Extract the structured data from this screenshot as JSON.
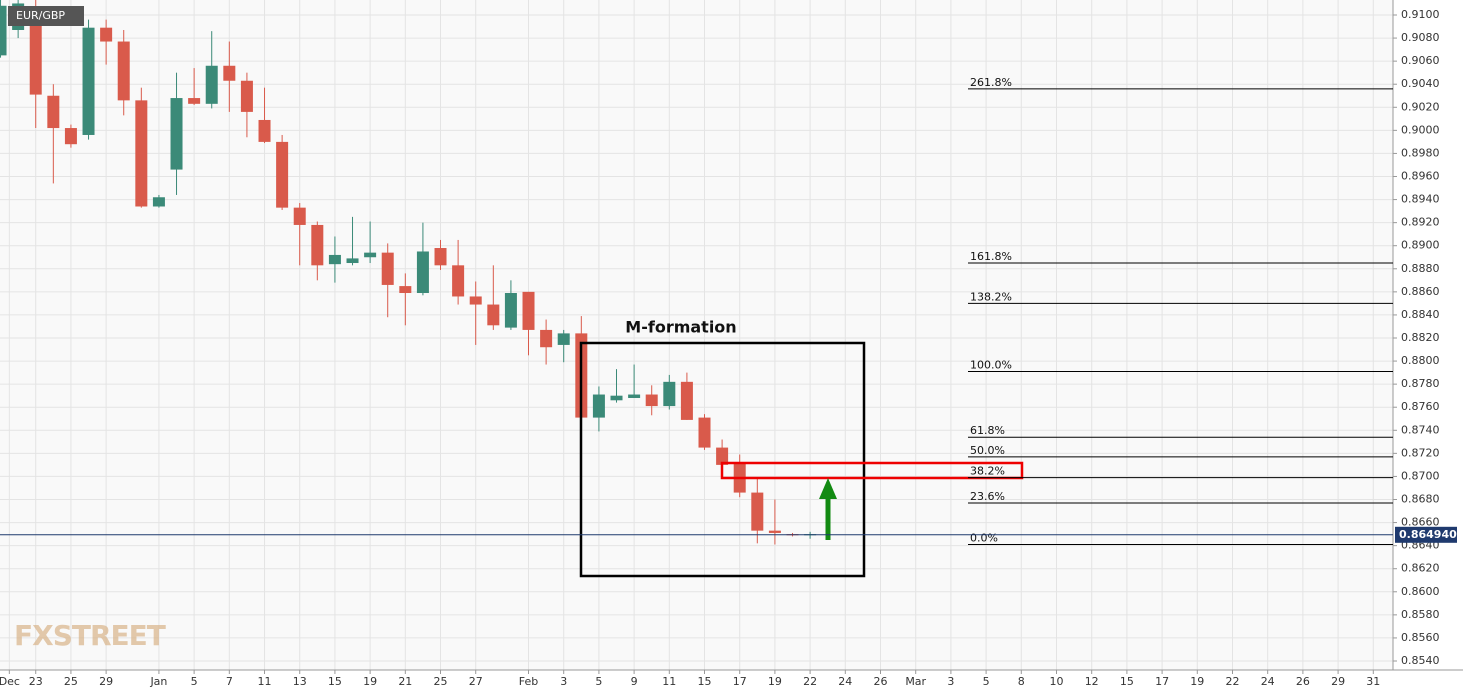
{
  "chart_data": {
    "type": "candlestick",
    "symbol": "EUR/GBP",
    "watermark": "FXSTREET",
    "annotation": "M-formation",
    "up_color": "#3b8a78",
    "down_color": "#d95a4b",
    "grid": true,
    "x": [
      0,
      1,
      2,
      3,
      4,
      5,
      6,
      7,
      8,
      9,
      10,
      11,
      12,
      13,
      14,
      15,
      16,
      17,
      18,
      19,
      20,
      21,
      22,
      23,
      24,
      25,
      26,
      27,
      28,
      29,
      30,
      31,
      32,
      33,
      34,
      35,
      36,
      37,
      38,
      39,
      40,
      41,
      42,
      43,
      44,
      45,
      46
    ],
    "open": [
      0.9065,
      0.9087,
      0.9098,
      0.903,
      0.9002,
      0.8996,
      0.9089,
      0.9077,
      0.9026,
      0.8934,
      0.8966,
      0.9028,
      0.9023,
      0.9056,
      0.9043,
      0.9009,
      0.899,
      0.8933,
      0.8918,
      0.8884,
      0.8885,
      0.889,
      0.8894,
      0.8865,
      0.8859,
      0.8898,
      0.8883,
      0.8856,
      0.8849,
      0.8829,
      0.886,
      0.8827,
      0.8814,
      0.8824,
      0.8751,
      0.8766,
      0.8768,
      0.8771,
      0.8761,
      0.8782,
      0.8751,
      0.8725,
      0.8711,
      0.8686,
      0.8653,
      0.865,
      0.8649
    ],
    "high": [
      0.9113,
      0.9113,
      0.9113,
      0.904,
      0.9005,
      0.9096,
      0.9096,
      0.9087,
      0.9037,
      0.8944,
      0.905,
      0.9054,
      0.9086,
      0.9077,
      0.905,
      0.9037,
      0.8996,
      0.8937,
      0.8921,
      0.8908,
      0.8925,
      0.8921,
      0.8902,
      0.8876,
      0.892,
      0.8905,
      0.8905,
      0.8869,
      0.8883,
      0.887,
      0.886,
      0.8836,
      0.8827,
      0.8839,
      0.8778,
      0.8793,
      0.8797,
      0.8779,
      0.8788,
      0.879,
      0.8754,
      0.8732,
      0.8719,
      0.8699,
      0.868,
      0.8651,
      0.8652
    ],
    "low": [
      0.9063,
      0.908,
      0.9002,
      0.8954,
      0.8985,
      0.8992,
      0.9057,
      0.9013,
      0.8933,
      0.8933,
      0.8944,
      0.9022,
      0.9019,
      0.9016,
      0.8994,
      0.8989,
      0.8931,
      0.8883,
      0.887,
      0.8868,
      0.8883,
      0.8885,
      0.8838,
      0.8831,
      0.8857,
      0.8879,
      0.8849,
      0.8814,
      0.8827,
      0.8827,
      0.8805,
      0.8797,
      0.8799,
      0.8751,
      0.8739,
      0.8764,
      0.8768,
      0.8753,
      0.8758,
      0.8749,
      0.8723,
      0.8701,
      0.8682,
      0.8642,
      0.8641,
      0.8648,
      0.8646
    ],
    "close": [
      0.9108,
      0.911,
      0.9031,
      0.9002,
      0.8988,
      0.9089,
      0.9077,
      0.9026,
      0.8934,
      0.8942,
      0.9028,
      0.9023,
      0.9056,
      0.9043,
      0.9016,
      0.899,
      0.8933,
      0.8918,
      0.8883,
      0.8892,
      0.8889,
      0.8894,
      0.8866,
      0.8859,
      0.8895,
      0.8883,
      0.8856,
      0.8849,
      0.8831,
      0.8859,
      0.8827,
      0.8812,
      0.8824,
      0.8751,
      0.8771,
      0.877,
      0.8771,
      0.8761,
      0.8782,
      0.8749,
      0.8725,
      0.871,
      0.8686,
      0.8653,
      0.8651,
      0.8649,
      0.865
    ],
    "xlim": [
      -0.03,
      79.12
    ],
    "ylim": [
      0.85322,
      0.9113
    ],
    "xticks": [
      {
        "value": 0.5,
        "label": "Dec"
      },
      {
        "value": 2,
        "label": "23"
      },
      {
        "value": 4,
        "label": "25"
      },
      {
        "value": 6,
        "label": "29"
      },
      {
        "value": 9,
        "label": "Jan"
      },
      {
        "value": 11,
        "label": "5"
      },
      {
        "value": 13,
        "label": "7"
      },
      {
        "value": 15,
        "label": "11"
      },
      {
        "value": 17,
        "label": "13"
      },
      {
        "value": 19,
        "label": "15"
      },
      {
        "value": 21,
        "label": "19"
      },
      {
        "value": 23,
        "label": "21"
      },
      {
        "value": 25,
        "label": "25"
      },
      {
        "value": 27,
        "label": "27"
      },
      {
        "value": 30,
        "label": "Feb"
      },
      {
        "value": 32,
        "label": "3"
      },
      {
        "value": 34,
        "label": "5"
      },
      {
        "value": 36,
        "label": "9"
      },
      {
        "value": 38,
        "label": "11"
      },
      {
        "value": 40,
        "label": "15"
      },
      {
        "value": 42,
        "label": "17"
      },
      {
        "value": 44,
        "label": "19"
      },
      {
        "value": 46,
        "label": "22"
      },
      {
        "value": 48,
        "label": "24"
      },
      {
        "value": 50,
        "label": "26"
      },
      {
        "value": 52,
        "label": "Mar"
      },
      {
        "value": 54,
        "label": "3"
      },
      {
        "value": 56,
        "label": "5"
      },
      {
        "value": 58,
        "label": "8"
      },
      {
        "value": 60,
        "label": "10"
      },
      {
        "value": 62,
        "label": "12"
      },
      {
        "value": 64,
        "label": "15"
      },
      {
        "value": 66,
        "label": "17"
      },
      {
        "value": 68,
        "label": "19"
      },
      {
        "value": 70,
        "label": "22"
      },
      {
        "value": 72,
        "label": "24"
      },
      {
        "value": 74,
        "label": "26"
      },
      {
        "value": 76,
        "label": "29"
      },
      {
        "value": 78,
        "label": "31"
      }
    ],
    "yticks": [
      {
        "value": 0.91,
        "label": "0.9100"
      },
      {
        "value": 0.908,
        "label": "0.9080"
      },
      {
        "value": 0.906,
        "label": "0.9060"
      },
      {
        "value": 0.904,
        "label": "0.9040"
      },
      {
        "value": 0.902,
        "label": "0.9020"
      },
      {
        "value": 0.9,
        "label": "0.9000"
      },
      {
        "value": 0.898,
        "label": "0.8980"
      },
      {
        "value": 0.896,
        "label": "0.8960"
      },
      {
        "value": 0.894,
        "label": "0.8940"
      },
      {
        "value": 0.892,
        "label": "0.8920"
      },
      {
        "value": 0.89,
        "label": "0.8900"
      },
      {
        "value": 0.888,
        "label": "0.8880"
      },
      {
        "value": 0.886,
        "label": "0.8860"
      },
      {
        "value": 0.884,
        "label": "0.8840"
      },
      {
        "value": 0.882,
        "label": "0.8820"
      },
      {
        "value": 0.88,
        "label": "0.8800"
      },
      {
        "value": 0.878,
        "label": "0.8780"
      },
      {
        "value": 0.876,
        "label": "0.8760"
      },
      {
        "value": 0.874,
        "label": "0.8740"
      },
      {
        "value": 0.872,
        "label": "0.8720"
      },
      {
        "value": 0.87,
        "label": "0.8700"
      },
      {
        "value": 0.868,
        "label": "0.8680"
      },
      {
        "value": 0.866,
        "label": "0.8660"
      },
      {
        "value": 0.864,
        "label": "0.8640"
      },
      {
        "value": 0.862,
        "label": "0.8620"
      },
      {
        "value": 0.86,
        "label": "0.8600"
      },
      {
        "value": 0.858,
        "label": "0.8580"
      },
      {
        "value": 0.856,
        "label": "0.8560"
      },
      {
        "value": 0.854,
        "label": "0.8540"
      }
    ],
    "last_price": {
      "value": 0.86494,
      "label": "0.864940"
    },
    "fib_levels": [
      {
        "value": 0.9036,
        "label": "261.8%"
      },
      {
        "value": 0.8885,
        "label": "161.8%"
      },
      {
        "value": 0.885,
        "label": "138.2%"
      },
      {
        "value": 0.8791,
        "label": "100.0%"
      },
      {
        "value": 0.8734,
        "label": "61.8%"
      },
      {
        "value": 0.8717,
        "label": "50.0%"
      },
      {
        "value": 0.8699,
        "label": "38.2%"
      },
      {
        "value": 0.8677,
        "label": "23.6%"
      },
      {
        "value": 0.8641,
        "label": "0.0%"
      }
    ]
  }
}
